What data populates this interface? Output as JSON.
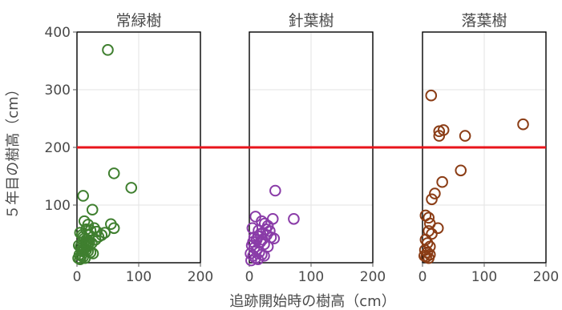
{
  "chart_data": {
    "type": "scatter",
    "xlabel": "追跡開始時の樹高（cm）",
    "ylabel": "５年目の樹高（cm）",
    "xlim": [
      0,
      200
    ],
    "ylim": [
      0,
      400
    ],
    "x_ticks": [
      "0",
      "100",
      "200"
    ],
    "y_ticks": [
      "100",
      "200",
      "300",
      "400"
    ],
    "grid": true,
    "reference_line": {
      "y": 200,
      "color": "#e8141b"
    },
    "panels": [
      {
        "title": "常緑樹",
        "color": "#3f7f2f",
        "points": [
          [
            50,
            369
          ],
          [
            60,
            155
          ],
          [
            88,
            130
          ],
          [
            10,
            116
          ],
          [
            25,
            92
          ],
          [
            55,
            67
          ],
          [
            60,
            60
          ],
          [
            12,
            72
          ],
          [
            18,
            66
          ],
          [
            15,
            58
          ],
          [
            22,
            56
          ],
          [
            28,
            60
          ],
          [
            32,
            54
          ],
          [
            40,
            48
          ],
          [
            45,
            52
          ],
          [
            5,
            52
          ],
          [
            8,
            48
          ],
          [
            10,
            45
          ],
          [
            12,
            42
          ],
          [
            15,
            40
          ],
          [
            18,
            38
          ],
          [
            20,
            35
          ],
          [
            24,
            34
          ],
          [
            3,
            30
          ],
          [
            6,
            28
          ],
          [
            9,
            26
          ],
          [
            12,
            24
          ],
          [
            15,
            22
          ],
          [
            18,
            20
          ],
          [
            22,
            18
          ],
          [
            26,
            16
          ],
          [
            4,
            14
          ],
          [
            7,
            12
          ],
          [
            10,
            10
          ],
          [
            13,
            8
          ],
          [
            2,
            8
          ],
          [
            5,
            6
          ],
          [
            8,
            20
          ],
          [
            11,
            33
          ],
          [
            14,
            30
          ],
          [
            17,
            28
          ],
          [
            30,
            40
          ],
          [
            35,
            45
          ],
          [
            20,
            48
          ],
          [
            16,
            36
          ]
        ]
      },
      {
        "title": "針葉樹",
        "color": "#8a3ca8",
        "points": [
          [
            42,
            125
          ],
          [
            10,
            80
          ],
          [
            38,
            76
          ],
          [
            72,
            76
          ],
          [
            20,
            72
          ],
          [
            25,
            68
          ],
          [
            30,
            64
          ],
          [
            5,
            60
          ],
          [
            15,
            56
          ],
          [
            22,
            52
          ],
          [
            28,
            48
          ],
          [
            35,
            44
          ],
          [
            40,
            42
          ],
          [
            8,
            44
          ],
          [
            12,
            40
          ],
          [
            18,
            36
          ],
          [
            24,
            32
          ],
          [
            30,
            28
          ],
          [
            4,
            30
          ],
          [
            8,
            26
          ],
          [
            12,
            22
          ],
          [
            16,
            18
          ],
          [
            20,
            14
          ],
          [
            24,
            12
          ],
          [
            2,
            16
          ],
          [
            6,
            12
          ],
          [
            10,
            8
          ],
          [
            14,
            6
          ],
          [
            3,
            4
          ],
          [
            18,
            50
          ],
          [
            27,
            58
          ],
          [
            33,
            55
          ],
          [
            14,
            46
          ],
          [
            21,
            40
          ],
          [
            6,
            36
          ]
        ]
      },
      {
        "title": "落葉樹",
        "color": "#8b3d16",
        "points": [
          [
            14,
            290
          ],
          [
            163,
            240
          ],
          [
            34,
            230
          ],
          [
            27,
            228
          ],
          [
            27,
            220
          ],
          [
            69,
            220
          ],
          [
            62,
            160
          ],
          [
            32,
            140
          ],
          [
            20,
            120
          ],
          [
            15,
            110
          ],
          [
            5,
            82
          ],
          [
            10,
            78
          ],
          [
            12,
            68
          ],
          [
            25,
            60
          ],
          [
            10,
            55
          ],
          [
            15,
            50
          ],
          [
            5,
            40
          ],
          [
            8,
            34
          ],
          [
            12,
            28
          ],
          [
            4,
            22
          ],
          [
            8,
            18
          ],
          [
            12,
            14
          ],
          [
            3,
            12
          ],
          [
            6,
            10
          ],
          [
            10,
            8
          ]
        ]
      }
    ]
  }
}
